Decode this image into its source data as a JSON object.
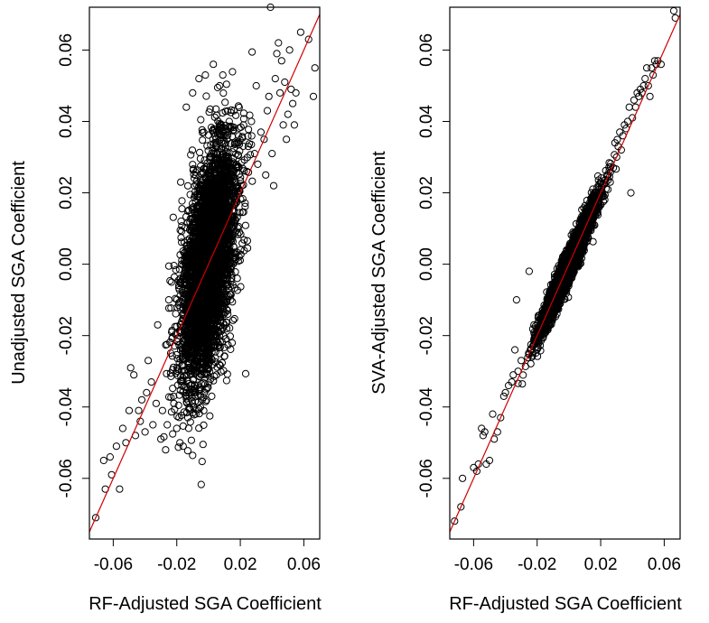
{
  "chart_data": [
    {
      "type": "scatter",
      "xlabel": "RF-Adjusted SGA Coefficient",
      "ylabel": "Unadjusted SGA Coefficient",
      "xlim": [
        -0.075,
        0.07
      ],
      "ylim": [
        -0.077,
        0.072
      ],
      "xticks": [
        -0.06,
        -0.02,
        0.02,
        0.06
      ],
      "xtick_labels": [
        "-0.06",
        "-0.02",
        "0.02",
        "0.06"
      ],
      "yticks": [
        -0.06,
        -0.04,
        -0.02,
        0.0,
        0.02,
        0.04,
        0.06
      ],
      "ytick_labels": [
        "-0.06",
        "-0.04",
        "-0.02",
        "0.00",
        "0.02",
        "0.04",
        "0.06"
      ],
      "reference_line": {
        "intercept": 0,
        "slope": 1,
        "color": "#d00000"
      },
      "dense_cloud": {
        "n": 4000,
        "x_mean": 0.0,
        "x_sd": 0.0085,
        "slope": 0.95,
        "resid_sd": 0.0145
      },
      "points": [
        [
          -0.071,
          -0.071
        ],
        [
          -0.066,
          -0.055
        ],
        [
          -0.065,
          -0.063
        ],
        [
          -0.062,
          -0.054
        ],
        [
          -0.061,
          -0.059
        ],
        [
          -0.058,
          -0.051
        ],
        [
          -0.056,
          -0.063
        ],
        [
          -0.054,
          -0.046
        ],
        [
          -0.052,
          -0.05
        ],
        [
          -0.05,
          -0.041
        ],
        [
          -0.049,
          -0.029
        ],
        [
          -0.047,
          -0.031
        ],
        [
          -0.046,
          -0.048
        ],
        [
          -0.044,
          -0.041
        ],
        [
          -0.043,
          -0.044
        ],
        [
          -0.042,
          -0.038
        ],
        [
          -0.04,
          -0.047
        ],
        [
          -0.039,
          -0.036
        ],
        [
          -0.038,
          -0.027
        ],
        [
          -0.036,
          -0.033
        ],
        [
          -0.035,
          -0.045
        ],
        [
          -0.033,
          -0.039
        ],
        [
          -0.032,
          -0.017
        ],
        [
          -0.03,
          -0.049
        ],
        [
          -0.029,
          -0.041
        ],
        [
          -0.027,
          -0.052
        ],
        [
          -0.026,
          -0.045
        ],
        [
          -0.025,
          -0.01
        ],
        [
          -0.022,
          -0.037
        ],
        [
          -0.02,
          -0.046
        ],
        [
          -0.018,
          -0.05
        ],
        [
          -0.016,
          -0.051
        ],
        [
          -0.013,
          -0.043
        ],
        [
          -0.011,
          -0.036
        ],
        [
          -0.008,
          -0.042
        ],
        [
          -0.004,
          -0.038
        ],
        [
          0.002,
          -0.037
        ],
        [
          0.005,
          -0.031
        ],
        [
          -0.014,
          0.044
        ],
        [
          -0.01,
          0.048
        ],
        [
          -0.006,
          0.052
        ],
        [
          -0.002,
          0.053
        ],
        [
          0.003,
          0.056
        ],
        [
          0.007,
          0.05
        ],
        [
          0.009,
          0.053
        ],
        [
          0.013,
          0.04
        ],
        [
          0.016,
          0.043
        ],
        [
          0.019,
          0.036
        ],
        [
          0.022,
          0.039
        ],
        [
          0.025,
          0.033
        ],
        [
          0.027,
          0.04
        ],
        [
          0.029,
          0.031
        ],
        [
          0.031,
          0.028
        ],
        [
          0.033,
          0.037
        ],
        [
          0.035,
          0.035
        ],
        [
          0.036,
          0.025
        ],
        [
          0.037,
          0.043
        ],
        [
          0.038,
          0.047
        ],
        [
          0.039,
          0.072
        ],
        [
          0.04,
          0.031
        ],
        [
          0.041,
          0.022
        ],
        [
          0.042,
          0.052
        ],
        [
          0.043,
          0.059
        ],
        [
          0.044,
          0.062
        ],
        [
          0.045,
          0.048
        ],
        [
          0.046,
          0.057
        ],
        [
          0.048,
          0.051
        ],
        [
          0.049,
          0.035
        ],
        [
          0.05,
          0.042
        ],
        [
          0.051,
          0.06
        ],
        [
          0.052,
          0.049
        ],
        [
          0.053,
          0.045
        ],
        [
          0.054,
          0.039
        ],
        [
          0.055,
          0.048
        ],
        [
          0.058,
          0.065
        ],
        [
          0.063,
          0.063
        ],
        [
          0.066,
          0.047
        ],
        [
          0.067,
          0.055
        ],
        [
          0.03,
          0.05
        ],
        [
          0.047,
          0.039
        ],
        [
          0.021,
          0.022
        ],
        [
          0.024,
          0.026
        ],
        [
          0.018,
          0.02
        ]
      ]
    },
    {
      "type": "scatter",
      "xlabel": "RF-Adjusted SGA Coefficient",
      "ylabel": "SVA-Adjusted SGA Coefficient",
      "xlim": [
        -0.075,
        0.07
      ],
      "ylim": [
        -0.077,
        0.072
      ],
      "xticks": [
        -0.06,
        -0.02,
        0.02,
        0.06
      ],
      "xtick_labels": [
        "-0.06",
        "-0.02",
        "0.02",
        "0.06"
      ],
      "yticks": [
        -0.06,
        -0.04,
        -0.02,
        0.0,
        0.02,
        0.04,
        0.06
      ],
      "ytick_labels": [
        "-0.06",
        "-0.04",
        "-0.02",
        "0.00",
        "0.02",
        "0.04",
        "0.06"
      ],
      "reference_line": {
        "intercept": 0,
        "slope": 1,
        "color": "#d00000"
      },
      "dense_cloud": {
        "n": 4000,
        "x_mean": 0.0,
        "x_sd": 0.0085,
        "slope": 1.0,
        "resid_sd": 0.0022
      },
      "points": [
        [
          -0.072,
          -0.072
        ],
        [
          -0.068,
          -0.068
        ],
        [
          -0.067,
          -0.06
        ],
        [
          -0.06,
          -0.057
        ],
        [
          -0.058,
          -0.058
        ],
        [
          -0.057,
          -0.056
        ],
        [
          -0.055,
          -0.046
        ],
        [
          -0.054,
          -0.048
        ],
        [
          -0.053,
          -0.047
        ],
        [
          -0.052,
          -0.056
        ],
        [
          -0.05,
          -0.055
        ],
        [
          -0.048,
          -0.042
        ],
        [
          -0.047,
          -0.049
        ],
        [
          -0.045,
          -0.047
        ],
        [
          -0.043,
          -0.043
        ],
        [
          -0.041,
          -0.037
        ],
        [
          -0.04,
          -0.036
        ],
        [
          -0.038,
          -0.034
        ],
        [
          -0.036,
          -0.033
        ],
        [
          -0.035,
          -0.031
        ],
        [
          -0.034,
          -0.024
        ],
        [
          -0.033,
          -0.01
        ],
        [
          -0.032,
          -0.03
        ],
        [
          -0.03,
          -0.027
        ],
        [
          -0.025,
          -0.002
        ],
        [
          -0.022,
          -0.017
        ],
        [
          -0.02,
          -0.021
        ],
        [
          0.02,
          0.023
        ],
        [
          0.022,
          0.019
        ],
        [
          0.024,
          0.025
        ],
        [
          0.026,
          0.023
        ],
        [
          0.028,
          0.027
        ],
        [
          0.029,
          0.034
        ],
        [
          0.03,
          0.03
        ],
        [
          0.031,
          0.033
        ],
        [
          0.032,
          0.037
        ],
        [
          0.033,
          0.032
        ],
        [
          0.034,
          0.036
        ],
        [
          0.035,
          0.039
        ],
        [
          0.036,
          0.038
        ],
        [
          0.037,
          0.04
        ],
        [
          0.038,
          0.044
        ],
        [
          0.039,
          0.02
        ],
        [
          0.04,
          0.041
        ],
        [
          0.041,
          0.046
        ],
        [
          0.042,
          0.044
        ],
        [
          0.043,
          0.048
        ],
        [
          0.044,
          0.047
        ],
        [
          0.045,
          0.049
        ],
        [
          0.046,
          0.048
        ],
        [
          0.047,
          0.05
        ],
        [
          0.048,
          0.052
        ],
        [
          0.05,
          0.05
        ],
        [
          0.052,
          0.055
        ],
        [
          0.053,
          0.053
        ],
        [
          0.054,
          0.057
        ],
        [
          0.055,
          0.056
        ],
        [
          0.056,
          0.057
        ],
        [
          0.058,
          0.056
        ],
        [
          0.066,
          0.071
        ],
        [
          0.067,
          0.069
        ],
        [
          0.051,
          0.047
        ],
        [
          0.049,
          0.055
        ]
      ]
    }
  ]
}
